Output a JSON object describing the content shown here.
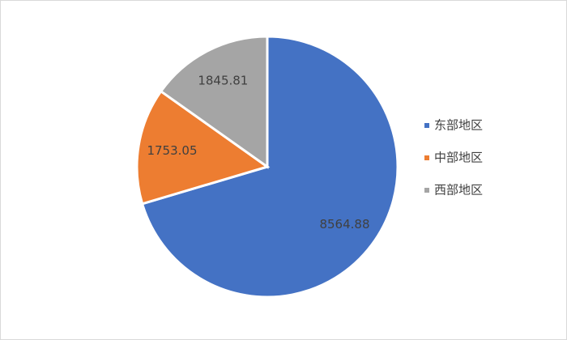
{
  "chart_data": {
    "type": "pie",
    "categories": [
      "东部地区",
      "中部地区",
      "西部地区"
    ],
    "values": [
      8564.88,
      1753.05,
      1845.81
    ],
    "colors": [
      "#4472c4",
      "#ed7d31",
      "#a5a5a5"
    ],
    "legend": "right"
  }
}
